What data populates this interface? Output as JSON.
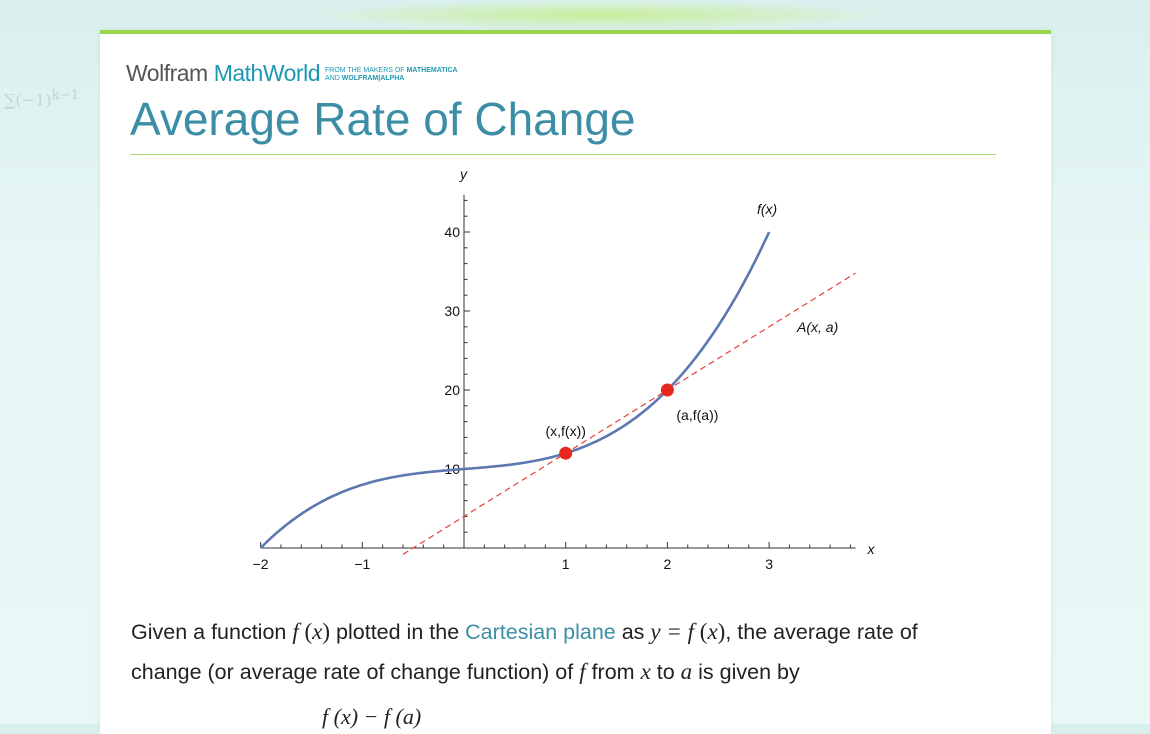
{
  "header": {
    "brand_wolfram": "Wolfram",
    "brand_mathworld": "MathWorld",
    "tagline_line1_prefix": "FROM THE MAKERS OF ",
    "tagline_line1_bold": "MATHEMATICA",
    "tagline_line2_prefix": "AND ",
    "tagline_line2_bold": "WOLFRAM|ALPHA"
  },
  "page": {
    "title": "Average Rate of Change"
  },
  "colors": {
    "accent": "#3b8ea5",
    "rule": "#a8d870",
    "curve": "#5b78b0",
    "secant": "#e8403a",
    "point": "#e8281e"
  },
  "chart_data": {
    "type": "line",
    "xlabel": "x",
    "ylabel": "y",
    "xlim": [
      -2,
      3.85
    ],
    "ylim": [
      0,
      44.7
    ],
    "xticks": [
      {
        "v": -2,
        "label": "−2"
      },
      {
        "v": -1,
        "label": "−1"
      },
      {
        "v": 1,
        "label": "1"
      },
      {
        "v": 2,
        "label": "2"
      },
      {
        "v": 3,
        "label": "3"
      }
    ],
    "yticks": [
      {
        "v": 10,
        "label": "10"
      },
      {
        "v": 20,
        "label": "20"
      },
      {
        "v": 30,
        "label": "30"
      },
      {
        "v": 40,
        "label": "40"
      }
    ],
    "grid": false,
    "series": [
      {
        "name": "f(x)",
        "style": "solid",
        "function": "x^3 + x + 10",
        "domain": [
          -2,
          3
        ]
      },
      {
        "name": "A(x, a)",
        "style": "dashed",
        "function": "8x + 4",
        "domain": [
          -0.6,
          3.85
        ]
      }
    ],
    "points": [
      {
        "x": 1,
        "y": 12,
        "label": "(x,f(x))"
      },
      {
        "x": 2,
        "y": 20,
        "label": "(a,f(a))"
      }
    ]
  },
  "body": {
    "p1_a": "Given a function ",
    "f": "f",
    "x": "x",
    "lp": " (",
    "rp": ")",
    "p1_b": " plotted in the ",
    "link": "Cartesian plane",
    "p1_c": " as ",
    "y_eq": "y = ",
    "p1_d": ", the average rate of",
    "p2_a": "change (or average rate of change function) of ",
    "p2_b": " from ",
    "p2_c": " to ",
    "a": "a",
    "p2_d": " is given by",
    "formula_numerator": "f (x) − f (a)"
  }
}
